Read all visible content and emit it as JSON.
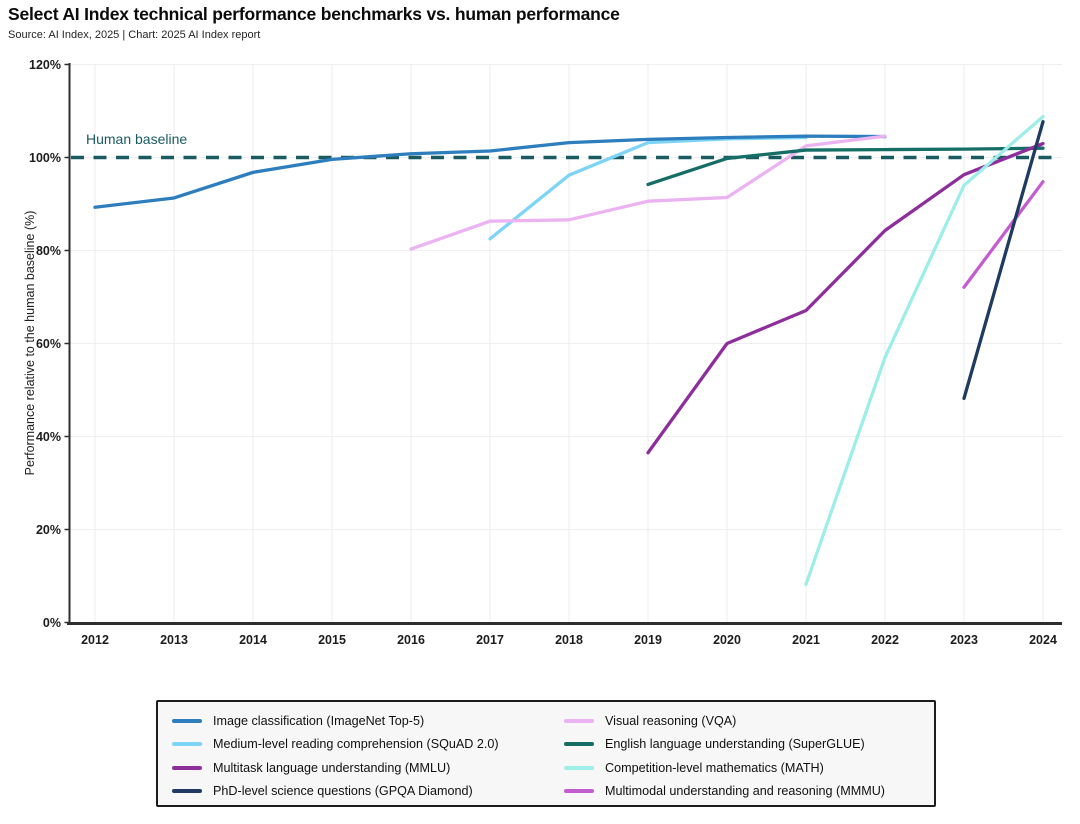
{
  "header": {
    "title": "Select AI Index technical performance benchmarks vs. human performance",
    "source_line": "Source: AI Index, 2025 | Chart: 2025 AI Index report"
  },
  "chart_data": {
    "type": "line",
    "title": "Select AI Index technical performance benchmarks vs. human performance",
    "xlabel": "",
    "ylabel": "Performance relative to the human baseline (%)",
    "xlim": [
      2012,
      2024
    ],
    "ylim": [
      0,
      120
    ],
    "x_ticks": [
      2012,
      2013,
      2014,
      2015,
      2016,
      2017,
      2018,
      2019,
      2020,
      2021,
      2022,
      2023,
      2024
    ],
    "y_tick_values": [
      0,
      20,
      40,
      60,
      80,
      100,
      120
    ],
    "y_tick_labels": [
      "0%",
      "20%",
      "40%",
      "60%",
      "80%",
      "100%",
      "120%"
    ],
    "grid": true,
    "legend_position": "bottom",
    "baseline": {
      "label": "Human baseline",
      "value": 100,
      "color": "#1A5B61"
    },
    "draw_order": [
      "squad",
      "imagenet",
      "vqa",
      "superglue",
      "mmlu",
      "math",
      "mmmu",
      "gpqa"
    ],
    "series": [
      {
        "key": "imagenet",
        "name": "Image classification (ImageNet Top-5)",
        "color": "#2E7EBD",
        "points": [
          [
            2012,
            89.3
          ],
          [
            2013,
            91.3
          ],
          [
            2014,
            96.8
          ],
          [
            2015,
            99.6
          ],
          [
            2016,
            100.8
          ],
          [
            2017,
            101.4
          ],
          [
            2018,
            103.2
          ],
          [
            2019,
            103.9
          ],
          [
            2020,
            104.3
          ],
          [
            2021,
            104.6
          ],
          [
            2022,
            104.5
          ]
        ]
      },
      {
        "key": "squad",
        "name": "Medium-level reading comprehension (SQuAD 2.0)",
        "color": "#7DD4F6",
        "points": [
          [
            2017,
            82.5
          ],
          [
            2018,
            96.2
          ],
          [
            2019,
            103.2
          ],
          [
            2020,
            104.0
          ],
          [
            2021,
            104.3
          ]
        ]
      },
      {
        "key": "mmlu",
        "name": "Multitask language understanding (MMLU)",
        "color": "#8E2D9C",
        "points": [
          [
            2019,
            36.5
          ],
          [
            2020,
            60.0
          ],
          [
            2021,
            67.1
          ],
          [
            2022,
            84.3
          ],
          [
            2023,
            96.3
          ],
          [
            2024,
            103.0
          ]
        ]
      },
      {
        "key": "gpqa",
        "name": "PhD-level science questions (GPQA Diamond)",
        "color": "#1F3A63",
        "points": [
          [
            2023,
            48.2
          ],
          [
            2024,
            107.7
          ]
        ]
      },
      {
        "key": "vqa",
        "name": "Visual reasoning (VQA)",
        "color": "#ECB3F2",
        "points": [
          [
            2016,
            80.3
          ],
          [
            2017,
            86.3
          ],
          [
            2018,
            86.6
          ],
          [
            2019,
            90.6
          ],
          [
            2020,
            91.4
          ],
          [
            2021,
            102.5
          ],
          [
            2022,
            104.6
          ]
        ]
      },
      {
        "key": "superglue",
        "name": "English language understanding (SuperGLUE)",
        "color": "#156E66",
        "points": [
          [
            2019,
            94.2
          ],
          [
            2020,
            99.8
          ],
          [
            2021,
            101.6
          ],
          [
            2022,
            101.7
          ],
          [
            2023,
            101.8
          ],
          [
            2024,
            102.0
          ]
        ]
      },
      {
        "key": "math",
        "name": "Competition-level mathematics (MATH)",
        "color": "#9DEEE8",
        "points": [
          [
            2021,
            8.2
          ],
          [
            2022,
            57.0
          ],
          [
            2023,
            94.0
          ],
          [
            2024,
            108.8
          ]
        ]
      },
      {
        "key": "mmmu",
        "name": "Multimodal understanding and reasoning (MMMU)",
        "color": "#C45ED0",
        "points": [
          [
            2023,
            72.1
          ],
          [
            2024,
            94.8
          ]
        ]
      }
    ]
  }
}
